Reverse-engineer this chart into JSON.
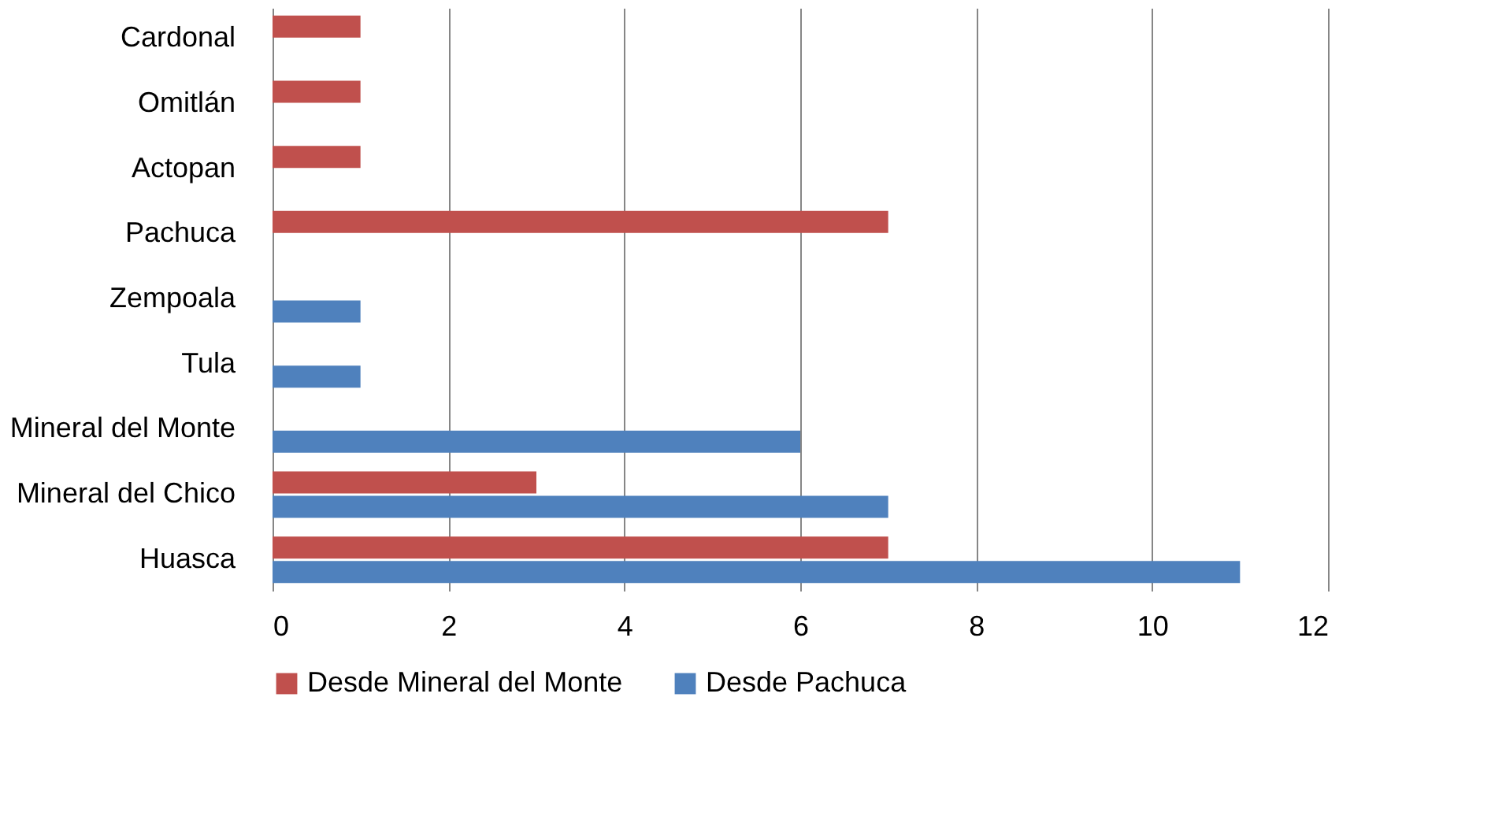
{
  "chart_data": {
    "type": "bar",
    "orientation": "horizontal",
    "categories": [
      "Cardonal",
      "Omitlán",
      "Actopan",
      "Pachuca",
      "Zempoala",
      "Tula",
      "Mineral del Monte",
      "Mineral del Chico",
      "Huasca"
    ],
    "series": [
      {
        "name": "Desde Mineral del Monte",
        "color": "#c0504d",
        "values": [
          1,
          1,
          1,
          7,
          null,
          null,
          null,
          3,
          7
        ]
      },
      {
        "name": "Desde Pachuca",
        "color": "#4f81bd",
        "values": [
          null,
          null,
          null,
          null,
          1,
          1,
          6,
          7,
          11
        ]
      }
    ],
    "xlim": [
      0,
      12
    ],
    "xticks": [
      0,
      2,
      4,
      6,
      8,
      10,
      12
    ],
    "grid": "x",
    "legend": "bottom"
  }
}
